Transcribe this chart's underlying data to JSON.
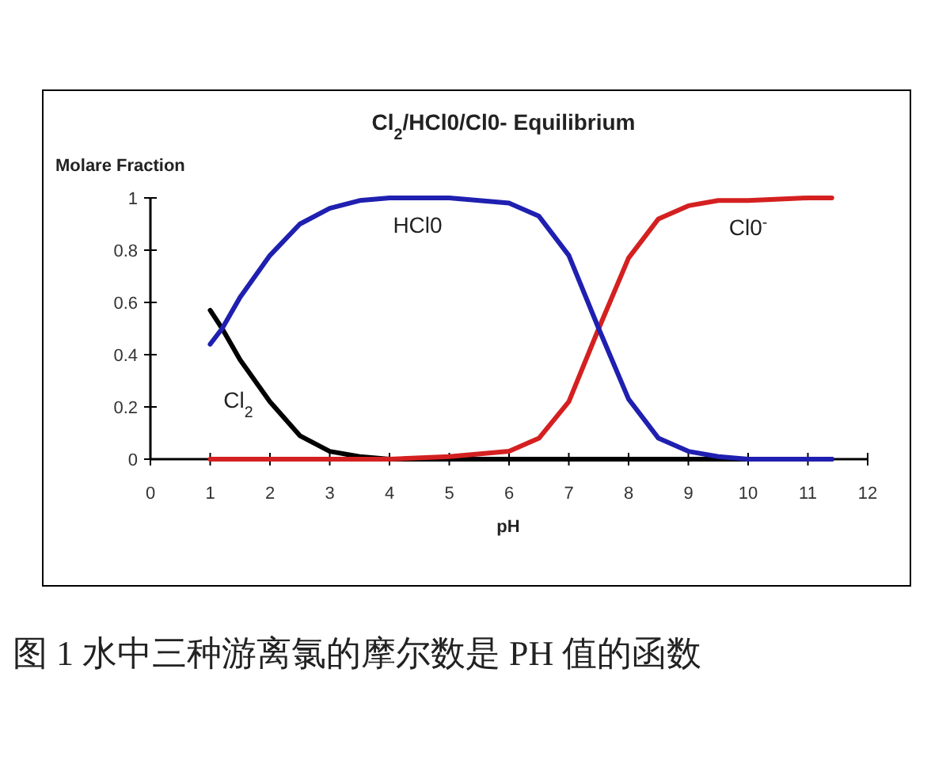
{
  "chart_data": {
    "type": "line",
    "title": "Cl$_{2}$/HCl0/Cl0- Equilibrium",
    "xlabel": "pH",
    "ylabel": "Molare Fraction",
    "x": [
      1,
      1.2,
      1.5,
      2,
      2.5,
      3,
      3.5,
      4,
      5,
      6,
      6.5,
      7,
      7.5,
      8,
      8.5,
      9,
      9.5,
      10,
      11,
      11.4
    ],
    "series": [
      {
        "name": "Cl$_{2}$",
        "color": "#000000",
        "values": [
          0.57,
          0.5,
          0.38,
          0.22,
          0.09,
          0.03,
          0.01,
          0,
          0,
          0,
          0,
          0,
          0,
          0,
          0,
          0,
          0,
          0,
          0,
          0
        ]
      },
      {
        "name": "Cl0$^{-}$",
        "color": "#d42020",
        "values": [
          0,
          0,
          0,
          0,
          0,
          0,
          0,
          0,
          0.01,
          0.03,
          0.08,
          0.22,
          0.5,
          0.77,
          0.92,
          0.97,
          0.99,
          0.99,
          1,
          1
        ]
      },
      {
        "name": "HCl0",
        "color": "#1f1fb0",
        "values": [
          0.44,
          0.5,
          0.62,
          0.78,
          0.9,
          0.96,
          0.99,
          1,
          1,
          0.98,
          0.93,
          0.78,
          0.5,
          0.23,
          0.08,
          0.03,
          0.01,
          0,
          0,
          0
        ]
      }
    ],
    "xlim": [
      0,
      12
    ],
    "xticks": [
      0,
      1,
      2,
      3,
      4,
      5,
      6,
      7,
      8,
      9,
      10,
      11,
      12
    ],
    "ylim": [
      0,
      1
    ],
    "yticks": [
      0,
      0.2,
      0.4,
      0.6,
      0.8,
      1
    ],
    "annotations": [
      "图 1  水中三种游离氯的摩尔数是 PH 值的函数"
    ]
  }
}
